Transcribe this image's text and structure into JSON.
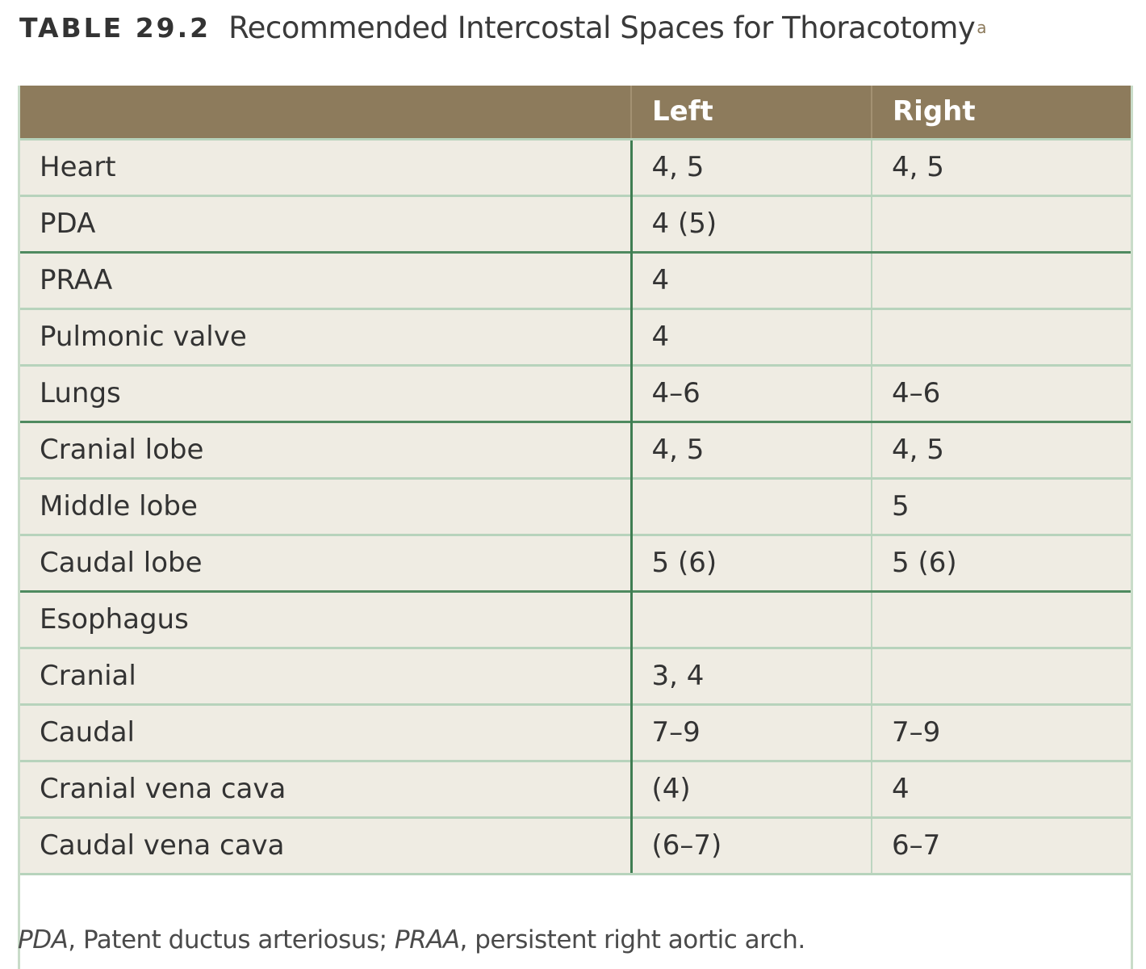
{
  "caption": {
    "label": "TABLE 29.2",
    "title": "Recommended Intercostal Spaces for Thoracotomy",
    "superscript": "a"
  },
  "table": {
    "columns": [
      "",
      "Left",
      "Right"
    ],
    "rows": [
      {
        "name": "Heart",
        "left": "4, 5",
        "right": "4, 5"
      },
      {
        "name": "PDA",
        "left": "4 (5)",
        "right": ""
      },
      {
        "name": "PRAA",
        "left": "4",
        "right": ""
      },
      {
        "name": "Pulmonic valve",
        "left": "4",
        "right": ""
      },
      {
        "name": "Lungs",
        "left": "4–6",
        "right": "4–6"
      },
      {
        "name": "Cranial lobe",
        "left": "4, 5",
        "right": "4, 5"
      },
      {
        "name": "Middle lobe",
        "left": "",
        "right": "5"
      },
      {
        "name": "Caudal lobe",
        "left": "5 (6)",
        "right": "5 (6)"
      },
      {
        "name": "Esophagus",
        "left": "",
        "right": ""
      },
      {
        "name": "Cranial",
        "left": "3, 4",
        "right": ""
      },
      {
        "name": "Caudal",
        "left": "7–9",
        "right": "7–9"
      },
      {
        "name": "Cranial vena cava",
        "left": "(4)",
        "right": "4"
      },
      {
        "name": "Caudal vena cava",
        "left": "(6–7)",
        "right": "6–7"
      }
    ]
  },
  "footnote": {
    "abbr1": "PDA",
    "def1": ", Patent ductus arteriosus; ",
    "abbr2": "PRAA",
    "def2": ", persistent right aortic arch."
  },
  "colors": {
    "header_bg": "#8d7b5c",
    "row_bg": "#efece3",
    "grid_line": "#b7d3bc",
    "group_line": "#4f8a60"
  }
}
